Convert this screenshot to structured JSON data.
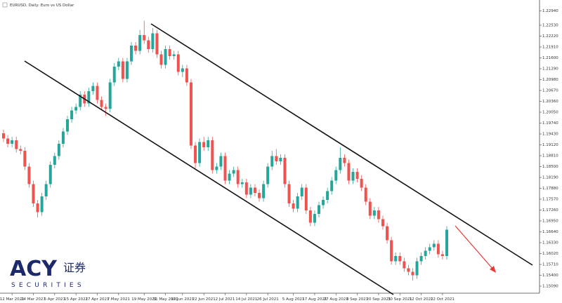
{
  "chart_data": {
    "type": "candlestick",
    "title": "EURUSD, Daily: Euro vs US Dollar",
    "categories": [
      null,
      null,
      "12 Mar 2021",
      null,
      null,
      null,
      null,
      "24 Mar 2021",
      null,
      null,
      null,
      null,
      "5 Apr 2021",
      null,
      null,
      null,
      null,
      "15 Apr 2021",
      null,
      null,
      null,
      null,
      "27 Apr 2021",
      null,
      null,
      null,
      null,
      "7 May 2021",
      null,
      null,
      null,
      null,
      null,
      "19 May 2021",
      null,
      null,
      null,
      null,
      "31 May 2021",
      null,
      null,
      null,
      "10 Jun 2021",
      null,
      null,
      null,
      null,
      "22 Jun 2021",
      null,
      null,
      null,
      null,
      "2 Jul 2021",
      null,
      null,
      null,
      null,
      "14 Jul 2021",
      null,
      null,
      null,
      null,
      "26 Jul 2021",
      null,
      null,
      null,
      null,
      null,
      "5 Aug 2021",
      null,
      null,
      null,
      null,
      "17 Aug 2021",
      null,
      null,
      null,
      null,
      "27 Aug 2021",
      null,
      null,
      null,
      null,
      "8 Sep 2021",
      null,
      null,
      null,
      null,
      "20 Sep 2021",
      null,
      null,
      null,
      null,
      "30 Sep 2021",
      null,
      null,
      null,
      null,
      "12 Oct 2021",
      null,
      null,
      null,
      null,
      "22 Oct 2021",
      null
    ],
    "open": [
      1.1945,
      1.193,
      1.1915,
      1.1925,
      1.19,
      1.1895,
      1.185,
      1.18,
      1.1745,
      1.172,
      1.1765,
      1.18,
      1.1855,
      1.188,
      1.1915,
      1.195,
      1.1985,
      1.201,
      1.202,
      1.2055,
      1.203,
      1.2065,
      1.208,
      1.204,
      1.202,
      1.2015,
      1.209,
      1.2135,
      1.215,
      1.21,
      1.215,
      1.2195,
      1.218,
      1.2225,
      1.221,
      1.2185,
      1.223,
      1.217,
      1.214,
      1.2185,
      1.2165,
      1.217,
      1.212,
      1.213,
      1.209,
      1.191,
      1.186,
      1.192,
      1.1905,
      1.1925,
      1.184,
      1.185,
      1.188,
      1.181,
      1.183,
      1.184,
      1.18,
      1.1805,
      1.177,
      1.179,
      1.1775,
      1.176,
      1.18,
      1.185,
      1.188,
      1.1865,
      1.1875,
      1.18,
      1.1745,
      1.173,
      1.1765,
      1.179,
      1.1725,
      1.169,
      1.1715,
      1.174,
      1.1755,
      1.178,
      1.181,
      1.184,
      1.1875,
      1.186,
      1.181,
      1.1835,
      1.1815,
      1.179,
      1.175,
      1.171,
      1.1725,
      1.17,
      1.168,
      1.164,
      1.158,
      1.1595,
      1.158,
      1.156,
      1.155,
      1.154,
      1.158,
      1.1595,
      1.161,
      1.162,
      1.163,
      1.16,
      1.1595
    ],
    "high": [
      1.1955,
      1.194,
      1.1935,
      1.1935,
      1.191,
      1.1905,
      1.186,
      1.181,
      1.1755,
      1.1775,
      1.181,
      1.1865,
      1.189,
      1.1925,
      1.196,
      1.1995,
      1.202,
      1.203,
      1.2065,
      1.2065,
      1.2075,
      1.209,
      1.209,
      1.205,
      1.203,
      1.21,
      1.2145,
      1.216,
      1.216,
      1.216,
      1.2205,
      1.2205,
      1.224,
      1.2266,
      1.222,
      1.2245,
      1.224,
      1.218,
      1.2195,
      1.2195,
      1.218,
      1.218,
      1.214,
      1.214,
      1.21,
      1.192,
      1.193,
      1.1935,
      1.1935,
      1.1935,
      1.186,
      1.189,
      1.189,
      1.184,
      1.185,
      1.185,
      1.1815,
      1.1815,
      1.18,
      1.18,
      1.1785,
      1.181,
      1.186,
      1.1895,
      1.19,
      1.1885,
      1.1885,
      1.181,
      1.1755,
      1.1775,
      1.18,
      1.18,
      1.1735,
      1.1725,
      1.175,
      1.1765,
      1.179,
      1.182,
      1.185,
      1.1905,
      1.1885,
      1.187,
      1.1845,
      1.1845,
      1.1825,
      1.18,
      1.176,
      1.1735,
      1.1735,
      1.171,
      1.169,
      1.165,
      1.1605,
      1.1605,
      1.159,
      1.157,
      1.156,
      1.159,
      1.1605,
      1.162,
      1.163,
      1.164,
      1.164,
      1.161,
      1.168
    ],
    "low": [
      1.192,
      1.1905,
      1.1905,
      1.189,
      1.1885,
      1.184,
      1.179,
      1.1735,
      1.1705,
      1.171,
      1.1755,
      1.179,
      1.1845,
      1.187,
      1.1905,
      1.194,
      1.1975,
      1.2,
      1.201,
      1.202,
      1.202,
      1.2055,
      1.203,
      1.201,
      1.1995,
      1.2005,
      1.208,
      1.2125,
      1.209,
      1.209,
      1.214,
      1.217,
      1.217,
      1.22,
      1.2175,
      1.2175,
      1.216,
      1.213,
      1.213,
      1.2155,
      1.2155,
      1.211,
      1.2105,
      1.208,
      1.19,
      1.1845,
      1.185,
      1.1895,
      1.1895,
      1.183,
      1.183,
      1.184,
      1.18,
      1.18,
      1.182,
      1.179,
      1.179,
      1.176,
      1.176,
      1.1765,
      1.175,
      1.175,
      1.179,
      1.184,
      1.1855,
      1.1855,
      1.179,
      1.1735,
      1.172,
      1.172,
      1.1755,
      1.1715,
      1.168,
      1.168,
      1.1705,
      1.173,
      1.1745,
      1.177,
      1.18,
      1.183,
      1.185,
      1.18,
      1.18,
      1.1805,
      1.178,
      1.174,
      1.17,
      1.17,
      1.169,
      1.167,
      1.163,
      1.157,
      1.157,
      1.157,
      1.155,
      1.154,
      1.1525,
      1.153,
      1.157,
      1.1585,
      1.16,
      1.161,
      1.159,
      1.1585,
      1.1585
    ],
    "close": [
      1.193,
      1.1915,
      1.1925,
      1.19,
      1.1895,
      1.185,
      1.18,
      1.1745,
      1.172,
      1.1765,
      1.18,
      1.1855,
      1.188,
      1.1915,
      1.195,
      1.1985,
      1.201,
      1.202,
      1.2055,
      1.203,
      1.2065,
      1.208,
      1.204,
      1.202,
      1.2015,
      1.209,
      1.2135,
      1.215,
      1.21,
      1.215,
      1.2195,
      1.218,
      1.2225,
      1.221,
      1.2185,
      1.223,
      1.217,
      1.214,
      1.2185,
      1.2165,
      1.217,
      1.212,
      1.213,
      1.209,
      1.191,
      1.186,
      1.192,
      1.1905,
      1.1925,
      1.184,
      1.185,
      1.188,
      1.181,
      1.183,
      1.184,
      1.18,
      1.1805,
      1.177,
      1.179,
      1.1775,
      1.176,
      1.18,
      1.185,
      1.188,
      1.1865,
      1.1875,
      1.18,
      1.1745,
      1.173,
      1.1765,
      1.179,
      1.1725,
      1.169,
      1.1715,
      1.174,
      1.1755,
      1.178,
      1.181,
      1.184,
      1.1875,
      1.186,
      1.181,
      1.1835,
      1.1815,
      1.179,
      1.175,
      1.171,
      1.1725,
      1.17,
      1.168,
      1.164,
      1.158,
      1.1595,
      1.158,
      1.156,
      1.155,
      1.154,
      1.158,
      1.1595,
      1.161,
      1.162,
      1.163,
      1.16,
      1.1595,
      1.167
    ],
    "up_color": "#26a69a",
    "down_color": "#ef5350",
    "ylim": [
      1.1489,
      1.2321
    ],
    "yticks": [
      {
        "value": 1.1509,
        "label": "1.15090"
      },
      {
        "value": 1.154,
        "label": "1.15400"
      },
      {
        "value": 1.1571,
        "label": "1.15710"
      },
      {
        "value": 1.1602,
        "label": "1.16020"
      },
      {
        "value": 1.1633,
        "label": "1.16330"
      },
      {
        "value": 1.1664,
        "label": "1.16640"
      },
      {
        "value": 1.1695,
        "label": "1.16950"
      },
      {
        "value": 1.1726,
        "label": "1.17260"
      },
      {
        "value": 1.1757,
        "label": "1.17570"
      },
      {
        "value": 1.1788,
        "label": "1.17880"
      },
      {
        "value": 1.1819,
        "label": "1.18190"
      },
      {
        "value": 1.185,
        "label": "1.18500"
      },
      {
        "value": 1.1881,
        "label": "1.18810"
      },
      {
        "value": 1.1912,
        "label": "1.19120"
      },
      {
        "value": 1.1943,
        "label": "1.19430"
      },
      {
        "value": 1.1974,
        "label": "1.19740"
      },
      {
        "value": 1.2005,
        "label": "1.20050"
      },
      {
        "value": 1.2036,
        "label": "1.20360"
      },
      {
        "value": 1.2067,
        "label": "1.20670"
      },
      {
        "value": 1.2098,
        "label": "1.20980"
      },
      {
        "value": 1.2129,
        "label": "1.21290"
      },
      {
        "value": 1.216,
        "label": "1.21600"
      },
      {
        "value": 1.2191,
        "label": "1.21910"
      },
      {
        "value": 1.2222,
        "label": "1.22220"
      },
      {
        "value": 1.2253,
        "label": "1.22530"
      },
      {
        "value": 1.2294,
        "label": "1.22940"
      }
    ]
  },
  "logo": {
    "brand": "ACY",
    "name": "证券",
    "tagline": "SECURITIES"
  }
}
